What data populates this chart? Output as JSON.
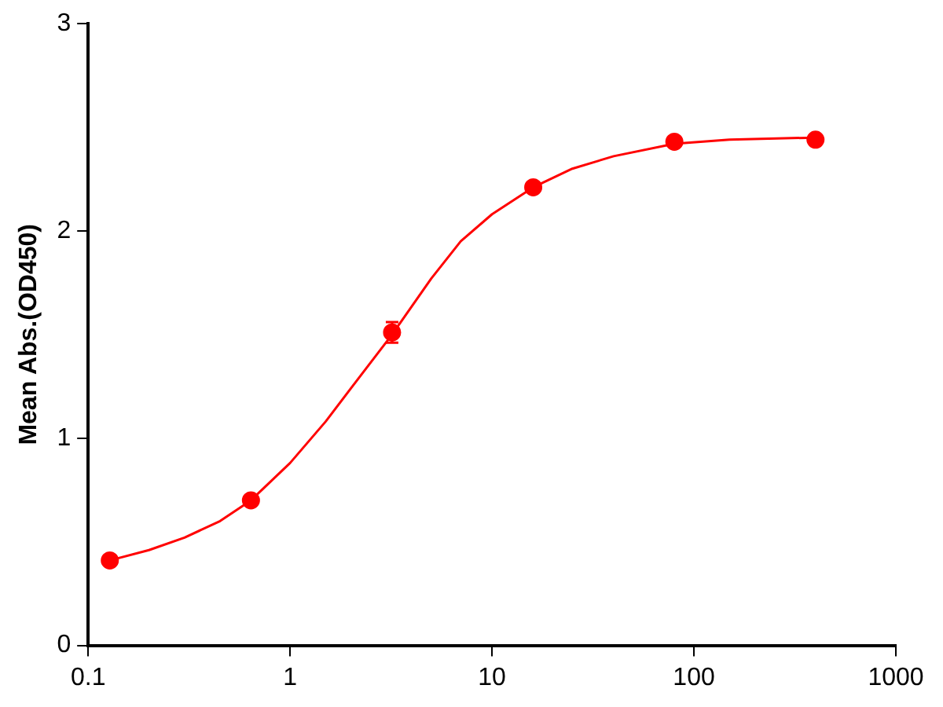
{
  "chart_data": {
    "type": "scatter",
    "ylabel": "Mean Abs.(OD450)",
    "log": "x",
    "xlim": [
      0.1,
      1000
    ],
    "xticks": [
      0.1,
      1,
      10,
      100,
      1000
    ],
    "ylim": [
      0,
      3
    ],
    "yticks": [
      0,
      1,
      2,
      3
    ],
    "grid": false,
    "legend": false,
    "marker": "circle",
    "series": [
      {
        "color": "#ff0000",
        "x": [
          0.128,
          0.64,
          3.2,
          16,
          80,
          400
        ],
        "values": [
          0.41,
          0.7,
          1.51,
          2.21,
          2.43,
          2.44
        ],
        "errors": [
          null,
          null,
          0.05,
          null,
          null,
          null
        ]
      },
      {
        "type": "line",
        "color": "#ff0000",
        "marker": "none",
        "x": [
          0.128,
          0.2,
          0.3,
          0.45,
          0.64,
          1,
          1.5,
          2,
          3.2,
          5,
          7,
          10,
          16,
          25,
          40,
          80,
          150,
          400
        ],
        "values": [
          0.41,
          0.46,
          0.52,
          0.6,
          0.7,
          0.88,
          1.08,
          1.24,
          1.5,
          1.77,
          1.95,
          2.08,
          2.21,
          2.3,
          2.36,
          2.42,
          2.44,
          2.45
        ]
      }
    ]
  }
}
